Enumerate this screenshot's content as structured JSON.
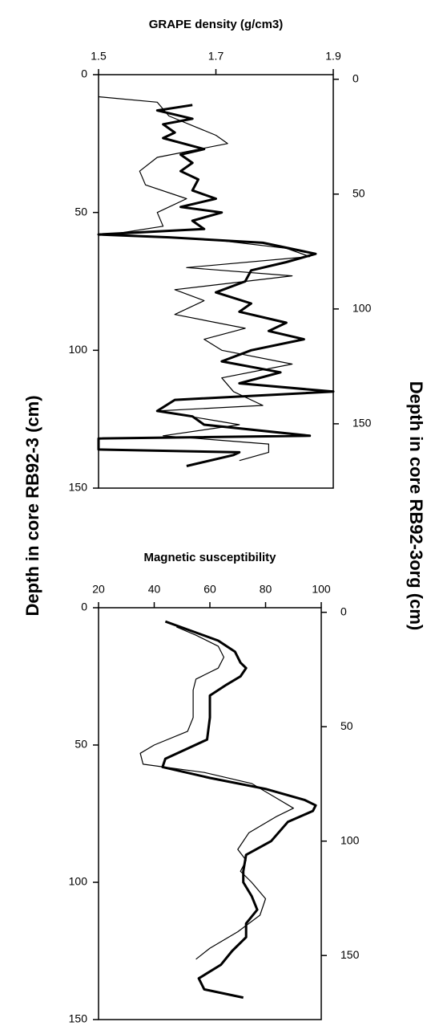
{
  "axis_labels": {
    "left": "Depth in core RB92-3 (cm)",
    "right": "Depth in core RB92-3org (cm)"
  },
  "chart_data": [
    {
      "type": "line",
      "title": "GRAPE density (g/cm3)",
      "xlim": [
        1.5,
        1.9
      ],
      "xticks": [
        1.5,
        1.7,
        1.9
      ],
      "ylim": [
        0,
        150
      ],
      "yticks": [
        0,
        50,
        100,
        150
      ],
      "y2lim": [
        -2,
        178
      ],
      "y2ticks": [
        0,
        50,
        100,
        150
      ],
      "series": [
        {
          "color": "#000000",
          "width": 1.2,
          "y": [
            8,
            10,
            15,
            22,
            25,
            30,
            35,
            40,
            45,
            50,
            55,
            58,
            60,
            63,
            66,
            70,
            73,
            78,
            82,
            87,
            92,
            96,
            100,
            105,
            110,
            115,
            120,
            122,
            127,
            131,
            134,
            137,
            140
          ],
          "values": [
            1.5,
            1.6,
            1.62,
            1.7,
            1.72,
            1.6,
            1.57,
            1.58,
            1.65,
            1.6,
            1.61,
            1.52,
            1.7,
            1.82,
            1.86,
            1.65,
            1.83,
            1.63,
            1.68,
            1.63,
            1.75,
            1.68,
            1.71,
            1.83,
            1.71,
            1.73,
            1.78,
            1.6,
            1.74,
            1.61,
            1.79,
            1.79,
            1.74
          ]
        },
        {
          "color": "#000000",
          "width": 3,
          "y": [
            11,
            13,
            16,
            18,
            21,
            23,
            27,
            29,
            32,
            35,
            38,
            42,
            45,
            48,
            50,
            53,
            56,
            58,
            59,
            61,
            65,
            68,
            71,
            75,
            79,
            83,
            86,
            90,
            93,
            96,
            100,
            104,
            108,
            112,
            115,
            118,
            122,
            124,
            127,
            131,
            132,
            136,
            137,
            138,
            142
          ],
          "values": [
            1.66,
            1.6,
            1.66,
            1.61,
            1.63,
            1.61,
            1.68,
            1.64,
            1.66,
            1.64,
            1.67,
            1.66,
            1.7,
            1.64,
            1.71,
            1.66,
            1.68,
            1.5,
            1.62,
            1.78,
            1.87,
            1.82,
            1.76,
            1.75,
            1.7,
            1.76,
            1.74,
            1.82,
            1.79,
            1.85,
            1.76,
            1.71,
            1.81,
            1.74,
            1.9,
            1.63,
            1.6,
            1.66,
            1.68,
            1.86,
            1.5,
            1.5,
            1.74,
            1.73,
            1.65
          ]
        }
      ]
    },
    {
      "type": "line",
      "title": "Magnetic susceptibility",
      "xlim": [
        20,
        100
      ],
      "xticks": [
        20,
        40,
        60,
        80,
        100
      ],
      "ylim": [
        0,
        150
      ],
      "yticks": [
        0,
        50,
        100,
        150
      ],
      "y2lim": [
        -2,
        178
      ],
      "y2ticks": [
        0,
        50,
        100,
        150
      ],
      "series": [
        {
          "color": "#000000",
          "width": 1.2,
          "y": [
            7,
            10,
            14,
            18,
            22,
            26,
            30,
            40,
            45,
            50,
            53,
            57,
            60,
            64,
            70,
            73,
            76,
            82,
            88,
            92,
            96,
            100,
            106,
            112,
            118,
            124,
            128
          ],
          "values": [
            48,
            55,
            63,
            65,
            63,
            55,
            54,
            54,
            52,
            40,
            35,
            36,
            58,
            75,
            85,
            90,
            84,
            74,
            70,
            73,
            71,
            75,
            80,
            78,
            70,
            60,
            55
          ]
        },
        {
          "color": "#000000",
          "width": 3,
          "y": [
            5,
            12,
            16,
            20,
            22,
            25,
            28,
            32,
            40,
            48,
            55,
            58,
            62,
            66,
            70,
            72,
            74,
            78,
            85,
            90,
            96,
            100,
            105,
            110,
            115,
            120,
            125,
            130,
            135,
            139,
            142
          ],
          "values": [
            44,
            63,
            69,
            71,
            73,
            71,
            66,
            60,
            60,
            59,
            44,
            43,
            60,
            80,
            94,
            98,
            97,
            88,
            82,
            73,
            72,
            72,
            75,
            77,
            73,
            73,
            68,
            64,
            56,
            58,
            72
          ]
        }
      ]
    }
  ]
}
